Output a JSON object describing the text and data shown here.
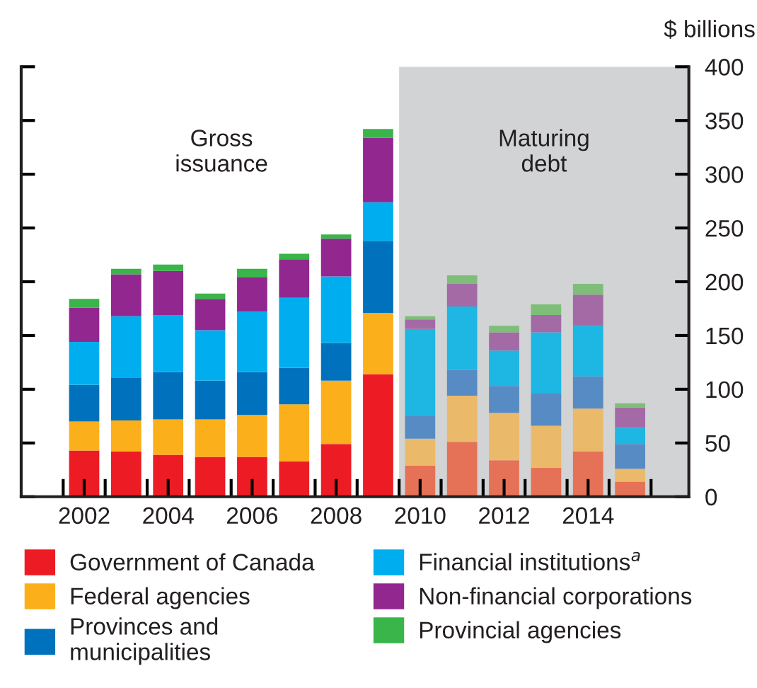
{
  "chart_data": {
    "type": "bar",
    "stacked": true,
    "ylabel": "$ billions",
    "x": [
      2002,
      2003,
      2004,
      2005,
      2006,
      2007,
      2008,
      2009,
      2010,
      2011,
      2012,
      2013,
      2014,
      2015
    ],
    "series": [
      {
        "name": "Government of Canada",
        "color": "#ed1c24",
        "colors": [
          "#ed1c24",
          "#ed1c24",
          "#ed1c24",
          "#ed1c24",
          "#ed1c24",
          "#ed1c24",
          "#ed1c24",
          "#ed1c24",
          "#e57257",
          "#e57257",
          "#e57257",
          "#e57257",
          "#e57257",
          "#e57257"
        ],
        "values": [
          43,
          42,
          39,
          37,
          37,
          33,
          49,
          114,
          29,
          51,
          34,
          27,
          42,
          14
        ]
      },
      {
        "name": "Federal agencies",
        "color": "#fbb01b",
        "colors": [
          "#fbb01b",
          "#fbb01b",
          "#fbb01b",
          "#fbb01b",
          "#fbb01b",
          "#fbb01b",
          "#fbb01b",
          "#fbb01b",
          "#ebb96a",
          "#ebb96a",
          "#ebb96a",
          "#ebb96a",
          "#ebb96a",
          "#ebb96a"
        ],
        "values": [
          27,
          29,
          33,
          35,
          39,
          53,
          59,
          57,
          25,
          43,
          44,
          39,
          40,
          12
        ]
      },
      {
        "name": "Provinces and\nmunicipalities",
        "color": "#0071bc",
        "colors": [
          "#0071bc",
          "#0071bc",
          "#0071bc",
          "#0071bc",
          "#0071bc",
          "#0071bc",
          "#0071bc",
          "#0071bc",
          "#568bc4",
          "#568bc4",
          "#568bc4",
          "#568bc4",
          "#568bc4",
          "#568bc4"
        ],
        "values": [
          34,
          40,
          44,
          36,
          40,
          34,
          35,
          67,
          21,
          24,
          25,
          30,
          30,
          23
        ]
      },
      {
        "name": "Financial institutions$^{a}$",
        "color": "#00aeef",
        "colors": [
          "#00aeef",
          "#00aeef",
          "#00aeef",
          "#00aeef",
          "#00aeef",
          "#00aeef",
          "#00aeef",
          "#00aeef",
          "#1eb6e3",
          "#1eb6e3",
          "#1eb6e3",
          "#1eb6e3",
          "#1eb6e3",
          "#1eb6e3"
        ],
        "values": [
          40,
          57,
          53,
          47,
          56,
          65,
          62,
          36,
          81,
          59,
          33,
          57,
          47,
          15
        ]
      },
      {
        "name": "Non-financial corporations",
        "color": "#92278f",
        "colors": [
          "#92278f",
          "#92278f",
          "#92278f",
          "#92278f",
          "#92278f",
          "#92278f",
          "#92278f",
          "#92278f",
          "#a46aa5",
          "#a46aa5",
          "#a46aa5",
          "#a46aa5",
          "#a46aa5",
          "#a46aa5"
        ],
        "values": [
          32,
          39,
          41,
          29,
          32,
          36,
          35,
          60,
          9,
          21,
          17,
          16,
          29,
          19
        ]
      },
      {
        "name": "Provincial agencies",
        "color": "#39b54a",
        "colors": [
          "#39b54a",
          "#39b54a",
          "#39b54a",
          "#39b54a",
          "#39b54a",
          "#39b54a",
          "#39b54a",
          "#39b54a",
          "#7fbe79",
          "#7fbe79",
          "#7fbe79",
          "#7fbe79",
          "#7fbe79",
          "#7fbe79"
        ],
        "values": [
          8,
          5,
          6,
          5,
          8,
          5,
          4,
          8,
          3,
          8,
          6,
          10,
          10,
          4
        ]
      }
    ],
    "xlim": [
      2000.5,
      2016.4
    ],
    "xticks": [
      {
        "value": 2001.5,
        "label": null
      },
      2002,
      {
        "value": 2002.5,
        "label": null
      },
      {
        "value": 2003.5,
        "label": null
      },
      2004,
      {
        "value": 2004.5,
        "label": null
      },
      {
        "value": 2005.5,
        "label": null
      },
      2006,
      {
        "value": 2006.5,
        "label": null
      },
      {
        "value": 2007.5,
        "label": null
      },
      2008,
      {
        "value": 2008.5,
        "label": null
      },
      {
        "value": 2009.5,
        "label": null
      },
      2010,
      {
        "value": 2010.5,
        "label": null
      },
      {
        "value": 2011.5,
        "label": null
      },
      2012,
      {
        "value": 2012.5,
        "label": null
      },
      {
        "value": 2013.5,
        "label": null
      },
      2014,
      {
        "value": 2014.5,
        "label": null
      },
      {
        "value": 2015.5,
        "label": null
      }
    ],
    "ylim": [
      0,
      400
    ],
    "yticks": [
      0,
      50,
      100,
      150,
      200,
      250,
      300,
      350,
      400
    ],
    "bands": [
      {
        "axis": "x",
        "from": 2009.5,
        "to": 2016.4,
        "label": "Maturing\ndebt",
        "color": "#d1d3d4"
      }
    ],
    "annotations": [
      "Gross\nissuance"
    ],
    "grid": false,
    "legend": "bottom"
  }
}
